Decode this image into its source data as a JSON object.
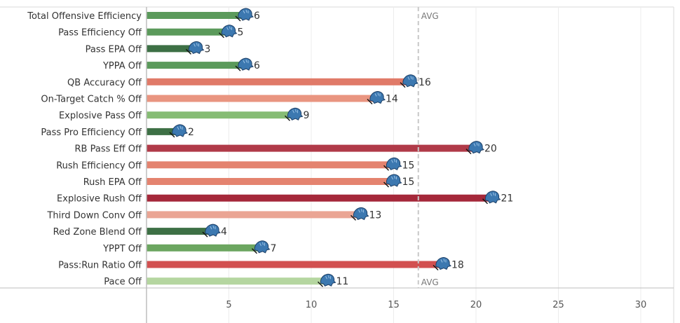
{
  "chart_data": {
    "type": "bar",
    "orientation": "horizontal",
    "categories": [
      "Total Offensive Efficiency",
      "Pass Efficiency Off",
      "Pass EPA Off",
      "YPPA Off",
      "QB Accuracy Off",
      "On-Target Catch % Off",
      "Explosive Pass Off",
      "Pass Pro Efficiency Off",
      "RB Pass Eff Off",
      "Rush Efficiency Off",
      "Rush EPA Off",
      "Explosive Rush Off",
      "Third Down Conv Off",
      "Red Zone Blend Off",
      "YPPT Off",
      "Pass:Run Ratio Off",
      "Pace Off"
    ],
    "values": [
      6,
      5,
      3,
      6,
      16,
      14,
      9,
      2,
      20,
      15,
      15,
      21,
      13,
      4,
      7,
      18,
      11
    ],
    "labels": [
      "6",
      "5",
      "3",
      "6",
      "16",
      "14",
      "9",
      "2",
      "20",
      "15",
      "15",
      "21",
      "13",
      "4",
      "7",
      "18",
      "11"
    ],
    "colors": [
      "#5b9a5b",
      "#5b9a5b",
      "#3d7045",
      "#5b9a5b",
      "#e07a68",
      "#e99580",
      "#86bc74",
      "#3d7045",
      "#b03a48",
      "#e4836f",
      "#e4836f",
      "#a5283a",
      "#eaa594",
      "#3d7045",
      "#6ca660",
      "#d25050",
      "#b5d6a0"
    ],
    "xlim": [
      0,
      32
    ],
    "xticks": [
      "5",
      "10",
      "15",
      "20",
      "25",
      "30"
    ],
    "xtick_values": [
      5,
      10,
      15,
      20,
      25,
      30
    ],
    "reference_line": {
      "value": 16.5,
      "label": "AVG"
    },
    "grid": true,
    "marker_icon": "lion-logo-icon",
    "title": "",
    "xlabel": "",
    "ylabel": ""
  }
}
